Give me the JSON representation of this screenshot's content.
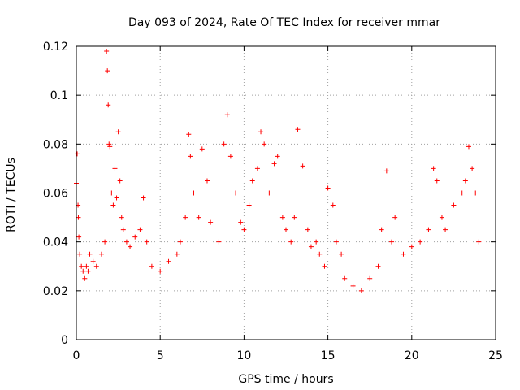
{
  "chart_data": {
    "type": "scatter",
    "title": "Day 093 of 2024, Rate Of TEC Index for receiver mmar",
    "xlabel": "GPS time / hours",
    "ylabel": "ROTI / TECUs",
    "xlim": [
      0,
      25
    ],
    "ylim": [
      0,
      0.12
    ],
    "xticks": [
      0,
      5,
      10,
      15,
      20,
      25
    ],
    "xtick_labels": [
      "0",
      "5",
      "10",
      "15",
      "20",
      "25"
    ],
    "yticks": [
      0,
      0.02,
      0.04,
      0.06,
      0.08,
      0.1,
      0.12
    ],
    "ytick_labels": [
      "0",
      "0.02",
      "0.04",
      "0.06",
      "0.08",
      "0.1",
      "0.12"
    ],
    "grid": true,
    "marker": "plus",
    "color": "#ff0000",
    "series": [
      {
        "x": [
          0.0,
          0.05,
          0.1,
          0.12,
          0.15,
          0.2,
          0.3,
          0.4,
          0.5,
          0.6,
          0.7,
          0.8,
          1.0,
          1.2,
          1.5,
          1.7,
          1.8,
          1.85,
          1.9,
          1.95,
          2.0,
          2.1,
          2.2,
          2.3,
          2.4,
          2.5,
          2.6,
          2.7,
          2.8,
          3.0,
          3.2,
          3.5,
          3.8,
          4.0,
          4.2,
          4.5,
          5.0,
          5.5,
          6.0,
          6.2,
          6.5,
          6.7,
          6.8,
          7.0,
          7.3,
          7.5,
          7.8,
          8.0,
          8.5,
          8.8,
          9.0,
          9.2,
          9.5,
          9.8,
          10.0,
          10.3,
          10.5,
          10.8,
          11.0,
          11.2,
          11.5,
          11.8,
          12.0,
          12.3,
          12.5,
          12.8,
          13.0,
          13.2,
          13.5,
          13.8,
          14.0,
          14.3,
          14.5,
          14.8,
          15.0,
          15.3,
          15.5,
          15.8,
          16.0,
          16.5,
          17.0,
          17.5,
          18.0,
          18.2,
          18.5,
          18.8,
          19.0,
          19.5,
          20.0,
          20.5,
          21.0,
          21.3,
          21.5,
          21.8,
          22.0,
          22.5,
          23.0,
          23.2,
          23.4,
          23.6,
          23.8,
          24.0
        ],
        "y": [
          0.064,
          0.076,
          0.055,
          0.05,
          0.042,
          0.035,
          0.03,
          0.028,
          0.025,
          0.03,
          0.028,
          0.035,
          0.032,
          0.03,
          0.035,
          0.04,
          0.118,
          0.11,
          0.096,
          0.08,
          0.079,
          0.06,
          0.055,
          0.07,
          0.058,
          0.085,
          0.065,
          0.05,
          0.045,
          0.04,
          0.038,
          0.042,
          0.045,
          0.058,
          0.04,
          0.03,
          0.028,
          0.032,
          0.035,
          0.04,
          0.05,
          0.084,
          0.075,
          0.06,
          0.05,
          0.078,
          0.065,
          0.048,
          0.04,
          0.08,
          0.092,
          0.075,
          0.06,
          0.048,
          0.045,
          0.055,
          0.065,
          0.07,
          0.085,
          0.08,
          0.06,
          0.072,
          0.075,
          0.05,
          0.045,
          0.04,
          0.05,
          0.086,
          0.071,
          0.045,
          0.038,
          0.04,
          0.035,
          0.03,
          0.062,
          0.055,
          0.04,
          0.035,
          0.025,
          0.022,
          0.02,
          0.025,
          0.03,
          0.045,
          0.069,
          0.04,
          0.05,
          0.035,
          0.038,
          0.04,
          0.045,
          0.07,
          0.065,
          0.05,
          0.045,
          0.055,
          0.06,
          0.065,
          0.079,
          0.07,
          0.06,
          0.04
        ]
      }
    ]
  }
}
